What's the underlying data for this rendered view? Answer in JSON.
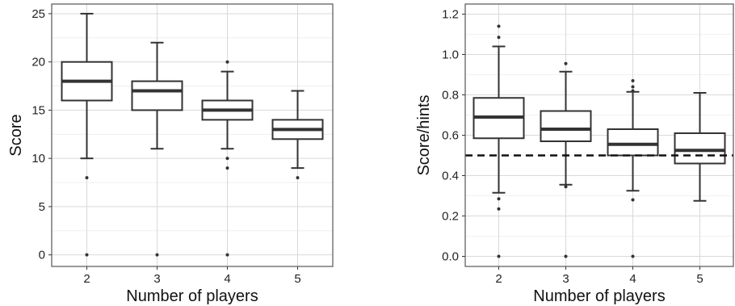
{
  "chart_data": [
    {
      "type": "box",
      "xlabel": "Number of players",
      "ylabel": "Score",
      "categories": [
        "2",
        "3",
        "4",
        "5"
      ],
      "ylim": [
        -1.2,
        26
      ],
      "yticks": [
        0,
        5,
        10,
        15,
        20,
        25
      ],
      "ytick_labels": [
        "0",
        "5",
        "10",
        "15",
        "20",
        "25"
      ],
      "grid": true,
      "boxes": [
        {
          "category": "2",
          "whisker_low": 10,
          "q1": 16,
          "median": 18,
          "q3": 20,
          "whisker_high": 25,
          "outliers": [
            8,
            0
          ]
        },
        {
          "category": "3",
          "whisker_low": 11,
          "q1": 15,
          "median": 17,
          "q3": 18,
          "whisker_high": 22,
          "outliers": [
            0
          ]
        },
        {
          "category": "4",
          "whisker_low": 11,
          "q1": 14,
          "median": 15,
          "q3": 16,
          "whisker_high": 19,
          "outliers": [
            20,
            10,
            9,
            0
          ]
        },
        {
          "category": "5",
          "whisker_low": 9,
          "q1": 12,
          "median": 13,
          "q3": 14,
          "whisker_high": 17,
          "outliers": [
            8
          ]
        }
      ]
    },
    {
      "type": "box",
      "xlabel": "Number of players",
      "ylabel": "Score/hints",
      "categories": [
        "2",
        "3",
        "4",
        "5"
      ],
      "ylim": [
        -0.05,
        1.25
      ],
      "yticks": [
        0,
        0.2,
        0.4,
        0.6,
        0.8,
        1.0,
        1.2
      ],
      "ytick_labels": [
        "0.0",
        "0.2",
        "0.4",
        "0.6",
        "0.8",
        "1.0",
        "1.2"
      ],
      "grid": true,
      "reference_line": {
        "y": 0.5,
        "style": "dashed"
      },
      "boxes": [
        {
          "category": "2",
          "whisker_low": 0.315,
          "q1": 0.585,
          "median": 0.69,
          "q3": 0.785,
          "whisker_high": 1.04,
          "outliers": [
            1.14,
            1.085,
            0.285,
            0.235,
            0
          ]
        },
        {
          "category": "3",
          "whisker_low": 0.355,
          "q1": 0.57,
          "median": 0.63,
          "q3": 0.72,
          "whisker_high": 0.915,
          "outliers": [
            0.955,
            0.345,
            0
          ]
        },
        {
          "category": "4",
          "whisker_low": 0.325,
          "q1": 0.5,
          "median": 0.555,
          "q3": 0.63,
          "whisker_high": 0.815,
          "outliers": [
            0.87,
            0.84,
            0.82,
            0.28,
            0
          ]
        },
        {
          "category": "5",
          "whisker_low": 0.275,
          "q1": 0.46,
          "median": 0.525,
          "q3": 0.61,
          "whisker_high": 0.81,
          "outliers": []
        }
      ]
    }
  ]
}
